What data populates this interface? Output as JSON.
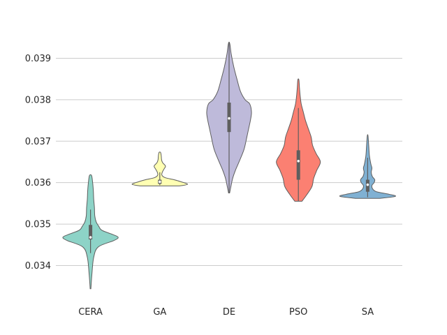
{
  "chart_data": {
    "type": "violin",
    "title": "",
    "xlabel": "",
    "ylabel": "",
    "ylim": [
      0.0332,
      0.0399
    ],
    "yticks": [
      "0.034",
      "0.035",
      "0.036",
      "0.037",
      "0.038",
      "0.039"
    ],
    "ytick_values": [
      0.034,
      0.035,
      0.036,
      0.037,
      0.038,
      0.039
    ],
    "grid": "horizontal",
    "categories": [
      "CERA",
      "GA",
      "DE",
      "PSO",
      "SA"
    ],
    "series": [
      {
        "category": "CERA",
        "color": "#8dd3c7",
        "min": 0.03344,
        "max": 0.03617,
        "q1": 0.03463,
        "median": 0.03468,
        "q3": 0.03498,
        "whisker_low": 0.0343,
        "whisker_high": 0.03535,
        "density": [
          [
            0.03344,
            0.1
          ],
          [
            0.0338,
            0.4
          ],
          [
            0.0342,
            0.9
          ],
          [
            0.03445,
            2.2
          ],
          [
            0.0346,
            6.5
          ],
          [
            0.03468,
            7.8
          ],
          [
            0.03475,
            6.2
          ],
          [
            0.03485,
            3.2
          ],
          [
            0.03495,
            2.3
          ],
          [
            0.03505,
            1.6
          ],
          [
            0.0352,
            1.2
          ],
          [
            0.0354,
            1.1
          ],
          [
            0.0356,
            0.9
          ],
          [
            0.0358,
            0.8
          ],
          [
            0.036,
            0.6
          ],
          [
            0.03617,
            0.3
          ]
        ]
      },
      {
        "category": "GA",
        "color": "#ffffb3",
        "min": 0.03592,
        "max": 0.03673,
        "q1": 0.03597,
        "median": 0.03602,
        "q3": 0.03607,
        "whisker_low": 0.03594,
        "whisker_high": 0.03625,
        "density": [
          [
            0.03592,
            5.5
          ],
          [
            0.03596,
            7.8
          ],
          [
            0.03602,
            6.0
          ],
          [
            0.03607,
            4.0
          ],
          [
            0.03612,
            1.5
          ],
          [
            0.03618,
            0.6
          ],
          [
            0.03625,
            0.7
          ],
          [
            0.03633,
            1.2
          ],
          [
            0.0364,
            1.6
          ],
          [
            0.03648,
            0.8
          ],
          [
            0.03655,
            0.5
          ],
          [
            0.03665,
            0.4
          ],
          [
            0.03673,
            0.2
          ]
        ]
      },
      {
        "category": "DE",
        "color": "#bebada",
        "min": 0.03575,
        "max": 0.03938,
        "q1": 0.03722,
        "median": 0.03755,
        "q3": 0.03793,
        "whisker_low": 0.03575,
        "whisker_high": 0.03938,
        "density": [
          [
            0.03575,
            0.15
          ],
          [
            0.0359,
            0.5
          ],
          [
            0.0361,
            1.0
          ],
          [
            0.0363,
            1.8
          ],
          [
            0.0365,
            2.8
          ],
          [
            0.0368,
            4.2
          ],
          [
            0.0371,
            5.0
          ],
          [
            0.0373,
            5.5
          ],
          [
            0.0375,
            6.0
          ],
          [
            0.0377,
            6.3
          ],
          [
            0.0379,
            5.8
          ],
          [
            0.038,
            4.5
          ],
          [
            0.0382,
            3.2
          ],
          [
            0.0385,
            2.2
          ],
          [
            0.0388,
            1.3
          ],
          [
            0.0391,
            0.6
          ],
          [
            0.0393,
            0.3
          ],
          [
            0.03938,
            0.1
          ]
        ]
      },
      {
        "category": "PSO",
        "color": "#fb8072",
        "min": 0.03555,
        "max": 0.03848,
        "q1": 0.03607,
        "median": 0.03652,
        "q3": 0.03678,
        "whisker_low": 0.03555,
        "whisker_high": 0.0378,
        "density": [
          [
            0.03555,
            1.0
          ],
          [
            0.0357,
            2.3
          ],
          [
            0.0359,
            3.8
          ],
          [
            0.0361,
            4.3
          ],
          [
            0.0363,
            5.2
          ],
          [
            0.0365,
            6.2
          ],
          [
            0.0367,
            5.0
          ],
          [
            0.0369,
            4.0
          ],
          [
            0.0371,
            3.6
          ],
          [
            0.0373,
            2.8
          ],
          [
            0.0375,
            2.0
          ],
          [
            0.0377,
            1.4
          ],
          [
            0.0379,
            0.8
          ],
          [
            0.0381,
            0.5
          ],
          [
            0.0383,
            0.3
          ],
          [
            0.03848,
            0.15
          ]
        ]
      },
      {
        "category": "SA",
        "color": "#80b1d3",
        "min": 0.03562,
        "max": 0.03713,
        "q1": 0.03578,
        "median": 0.03595,
        "q3": 0.03607,
        "whisker_low": 0.03565,
        "whisker_high": 0.0366,
        "density": [
          [
            0.03562,
            3.5
          ],
          [
            0.03567,
            7.8
          ],
          [
            0.03572,
            6.0
          ],
          [
            0.03578,
            2.5
          ],
          [
            0.03585,
            1.4
          ],
          [
            0.03593,
            1.2
          ],
          [
            0.036,
            1.8
          ],
          [
            0.03607,
            2.0
          ],
          [
            0.03615,
            1.3
          ],
          [
            0.03625,
            1.0
          ],
          [
            0.03635,
            1.2
          ],
          [
            0.03645,
            0.9
          ],
          [
            0.03665,
            0.5
          ],
          [
            0.0369,
            0.3
          ],
          [
            0.03713,
            0.1
          ]
        ]
      }
    ]
  }
}
